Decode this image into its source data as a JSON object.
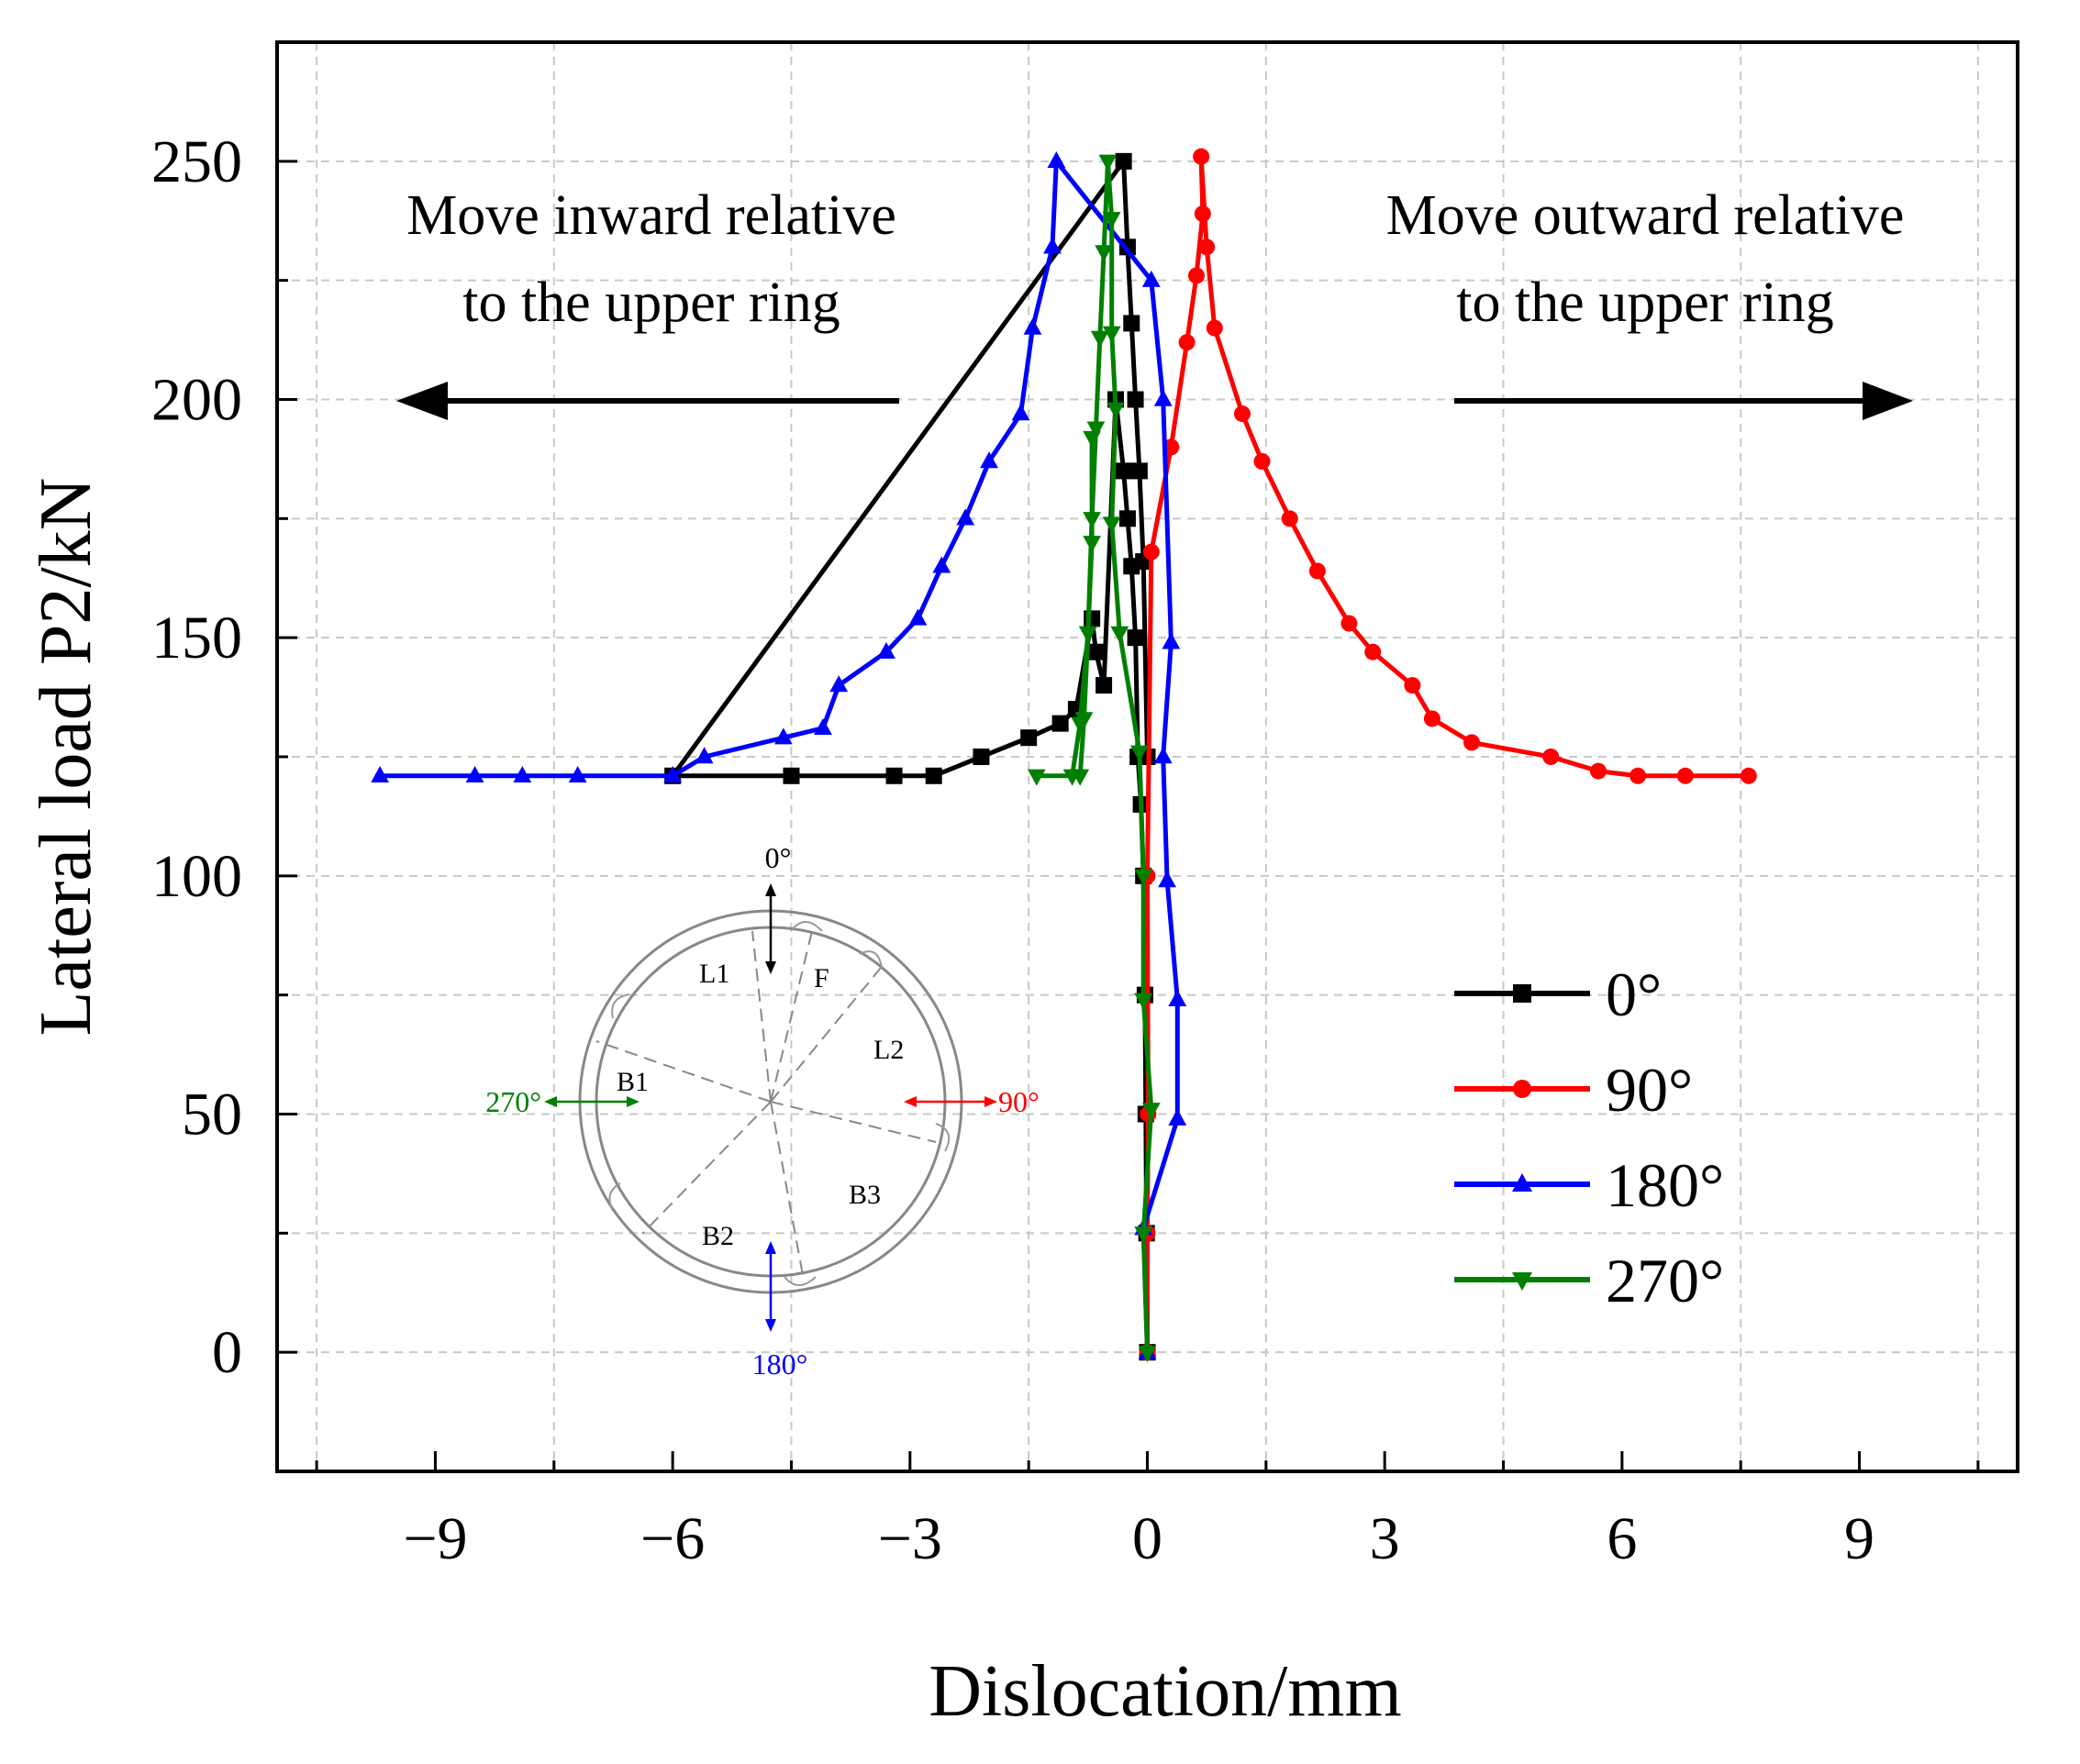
{
  "colors": {
    "series_0": "#000000",
    "series_90": "#ff0000",
    "series_180": "#0000ff",
    "series_270": "#008000",
    "grid": "#c8c8c8",
    "inset_lines": "#888888"
  },
  "annotations": {
    "inward_line1": "Move inward relative",
    "inward_line2": "to the upper ring",
    "outward_line1": "Move outward relative",
    "outward_line2": "to the upper ring"
  },
  "inset": {
    "label_0": "0°",
    "label_90": "90°",
    "label_180": "180°",
    "label_270": "270°",
    "segments": [
      "L1",
      "F",
      "L2",
      "B1",
      "B2",
      "B3"
    ]
  },
  "chart_data": {
    "type": "line",
    "title": "",
    "xlabel": "Dislocation/mm",
    "ylabel": "Lateral load P2/kN",
    "xlim": [
      -11,
      11
    ],
    "ylim": [
      -25,
      275
    ],
    "xticks": [
      -9,
      -6,
      -3,
      0,
      3,
      6,
      9
    ],
    "xtick_labels": [
      "−9",
      "−6",
      "−3",
      "0",
      "3",
      "6",
      "9"
    ],
    "yticks": [
      0,
      50,
      100,
      150,
      200,
      250
    ],
    "ytick_labels": [
      "0",
      "50",
      "100",
      "150",
      "200",
      "250"
    ],
    "grid": true,
    "legend_position": "lower-right",
    "series": [
      {
        "name": "0°",
        "color": "#000000",
        "marker": "square",
        "x": [
          0,
          -0.01,
          -0.02,
          -0.03,
          -0.05,
          -0.08,
          -0.12,
          -0.15,
          -0.2,
          -0.25,
          -0.3,
          -0.4,
          -0.55,
          -0.65,
          -0.7,
          -0.9,
          -1.1,
          -1.5,
          -2.1,
          -2.7,
          -3.2,
          -4.5,
          -6.0,
          -0.3,
          -0.25,
          -0.2,
          -0.15,
          -0.1,
          -0.05,
          0.0
        ],
        "y": [
          0,
          25,
          50,
          75,
          100,
          115,
          125,
          150,
          165,
          175,
          185,
          200,
          140,
          147,
          154,
          135,
          132,
          129,
          125,
          121,
          121,
          121,
          121,
          250,
          232,
          216,
          200,
          185,
          166,
          125
        ]
      },
      {
        "name": "90°",
        "color": "#ff0000",
        "marker": "circle",
        "x": [
          0,
          0.0,
          0.01,
          0.0,
          0.05,
          0.3,
          0.5,
          0.62,
          0.7,
          0.68,
          0.75,
          0.85,
          1.2,
          1.45,
          1.8,
          2.15,
          2.55,
          2.85,
          3.35,
          3.6,
          4.1,
          5.1,
          5.7,
          6.2,
          6.8,
          7.6
        ],
        "y": [
          0,
          25,
          50,
          100,
          168,
          190,
          212,
          226,
          239,
          251,
          232,
          215,
          197,
          187,
          175,
          164,
          153,
          147,
          140,
          133,
          128,
          125,
          122,
          121,
          121,
          121
        ]
      },
      {
        "name": "180°",
        "color": "#0000ff",
        "marker": "triangle-up",
        "x": [
          0,
          -0.05,
          0.38,
          0.38,
          0.25,
          0.2,
          0.3,
          0.2,
          0.05,
          -1.15,
          -1.2,
          -1.45,
          -1.6,
          -2.0,
          -2.3,
          -2.6,
          -2.9,
          -3.3,
          -3.9,
          -4.1,
          -4.6,
          -5.6,
          -6.0,
          -7.2,
          -7.9,
          -8.5,
          -9.7
        ],
        "y": [
          0,
          26,
          49,
          74,
          99,
          125,
          149,
          200,
          225,
          250,
          232,
          215,
          197,
          187,
          175,
          165,
          154,
          147,
          140,
          131,
          129,
          125,
          121,
          121,
          121,
          121,
          121
        ]
      },
      {
        "name": "270°",
        "color": "#008000",
        "marker": "triangle-down",
        "x": [
          0,
          -0.05,
          0.05,
          -0.05,
          -0.05,
          -0.1,
          -0.35,
          -0.45,
          -0.4,
          -0.45,
          -0.45,
          -0.5,
          -0.55,
          -0.6,
          -0.65,
          -0.7,
          -0.75,
          -0.85,
          -0.95,
          -1.4,
          -0.85,
          -0.8,
          -0.75,
          -0.7,
          -0.7
        ],
        "y": [
          0,
          25,
          51,
          74,
          100,
          126,
          151,
          174,
          198,
          214,
          238,
          250,
          231,
          213,
          194,
          175,
          151,
          132,
          121,
          121,
          121,
          133,
          151,
          170,
          192
        ]
      }
    ]
  }
}
